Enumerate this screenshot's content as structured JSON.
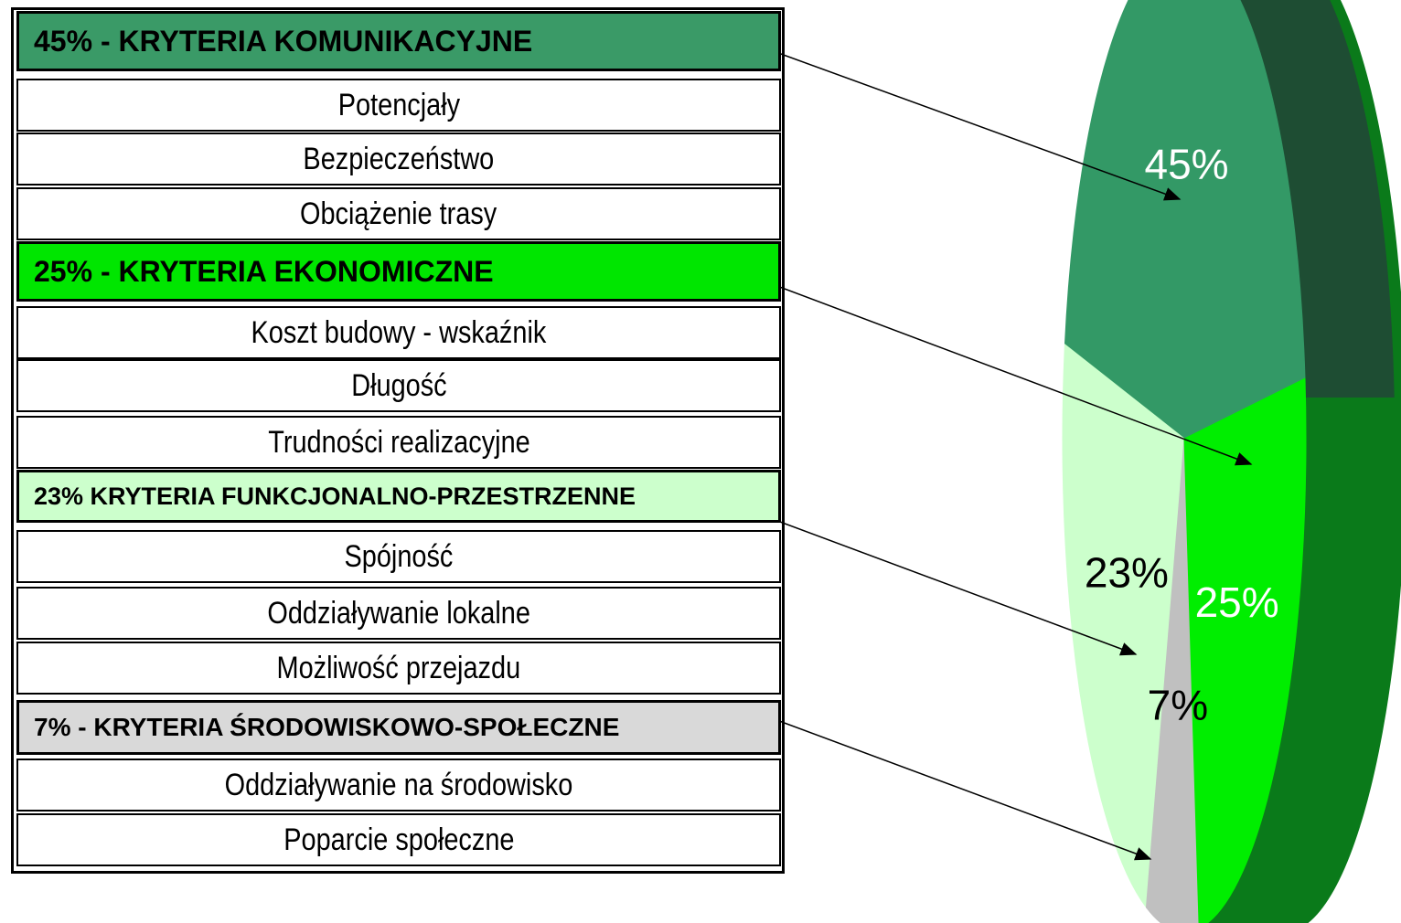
{
  "table": {
    "groups": [
      {
        "header": "45% - KRYTERIA KOMUNIKACYJNE",
        "color": "#3a9a67",
        "items": [
          "Potencjały",
          "Bezpieczeństwo",
          "Obciążenie trasy"
        ]
      },
      {
        "header": "25% - KRYTERIA EKONOMICZNE",
        "color": "#00e600",
        "items": [
          "Koszt budowy - wskaźnik",
          "Długość",
          "Trudności realizacyjne"
        ]
      },
      {
        "header": "23% KRYTERIA FUNKCJONALNO-PRZESTRZENNE",
        "color": "#ccffcc",
        "items": [
          "Spójność",
          "Oddziaływanie lokalne",
          "Możliwość przejazdu"
        ]
      },
      {
        "header": "7% - KRYTERIA ŚRODOWISKOWO-SPOŁECZNE",
        "color": "#d9d9d9",
        "items": [
          "Oddziaływanie na środowisko",
          "Poparcie społeczne"
        ]
      }
    ]
  },
  "chart_data": {
    "type": "pie",
    "values": [
      45,
      23,
      7,
      25
    ],
    "value_labels": [
      "45%",
      "23%",
      "7%",
      "25%"
    ],
    "colors": [
      "#339966",
      "#ccffcc",
      "#c0c0c0",
      "#00ee00"
    ]
  }
}
